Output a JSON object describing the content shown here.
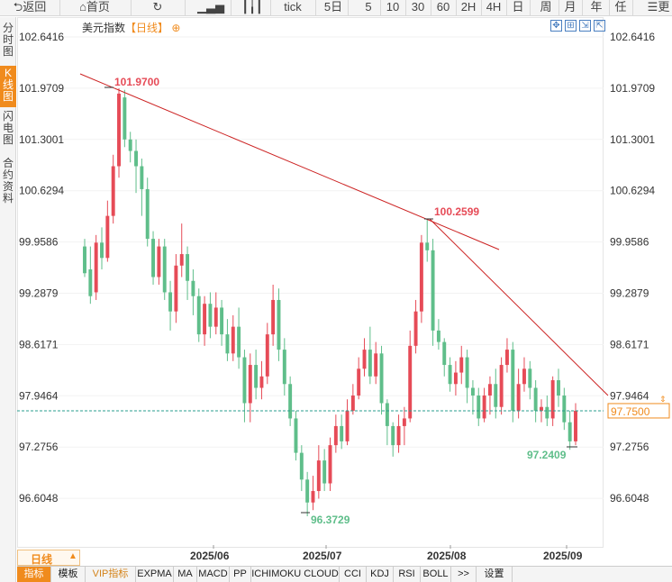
{
  "toolbar": {
    "back": "返回",
    "home": "首页",
    "tick": "tick",
    "periods": [
      "5日",
      "5",
      "10",
      "30",
      "60",
      "2H",
      "4H",
      "日",
      "周",
      "月",
      "年",
      "任"
    ],
    "more": "更"
  },
  "sidetabs": [
    "分时图",
    "K线图",
    "闪电图",
    "合约资料"
  ],
  "title": {
    "name": "美元指数",
    "period": "【日线】"
  },
  "current_price": "97.7500",
  "period_selector": "日线",
  "bottom_tabs": [
    "指标",
    "模板",
    "VIP指标",
    "EXPMA",
    "MA",
    "MACD",
    "PP",
    "ICHIMOKU CLOUD",
    "CCI",
    "KDJ",
    "RSI",
    "BOLL",
    ">>",
    "设置"
  ],
  "colors": {
    "up": "#e64b57",
    "down": "#5fbe8a",
    "trendline": "#cc2222",
    "accent": "#f08b1d",
    "price_line": "#2a9d8f"
  },
  "chart_data": {
    "type": "candlestick",
    "y_ticks": [
      "102.6416",
      "101.9709",
      "101.3001",
      "100.6294",
      "99.9586",
      "99.2879",
      "98.6171",
      "97.9464",
      "97.2756",
      "96.6048"
    ],
    "ylim": [
      96.45,
      102.75
    ],
    "x_labels": [
      "2025/06",
      "2025/07",
      "2025/08",
      "2025/09"
    ],
    "annotations": [
      {
        "text": "101.9700",
        "type": "high"
      },
      {
        "text": "100.2599",
        "type": "high"
      },
      {
        "text": "96.3729",
        "type": "low"
      },
      {
        "text": "97.2409",
        "type": "low"
      }
    ],
    "candles": [
      [
        99.9,
        99.55,
        100.0,
        99.5
      ],
      [
        99.6,
        99.25,
        99.9,
        99.15
      ],
      [
        99.3,
        99.95,
        100.05,
        99.2
      ],
      [
        99.95,
        99.75,
        100.15,
        99.6
      ],
      [
        99.75,
        100.3,
        100.5,
        99.7
      ],
      [
        100.3,
        100.95,
        101.1,
        100.2
      ],
      [
        100.95,
        101.9,
        101.97,
        100.8
      ],
      [
        101.85,
        101.3,
        101.95,
        101.2
      ],
      [
        101.3,
        101.15,
        101.4,
        101.0
      ],
      [
        101.15,
        100.95,
        101.3,
        100.6
      ],
      [
        100.95,
        100.65,
        101.05,
        100.3
      ],
      [
        100.65,
        100.0,
        100.8,
        99.9
      ],
      [
        100.0,
        99.5,
        100.1,
        99.4
      ],
      [
        99.5,
        99.9,
        100.0,
        99.4
      ],
      [
        99.9,
        99.3,
        100.0,
        99.2
      ],
      [
        99.3,
        99.05,
        99.45,
        98.8
      ],
      [
        99.05,
        99.65,
        99.8,
        98.9
      ],
      [
        99.65,
        99.8,
        100.2,
        99.5
      ],
      [
        99.8,
        99.45,
        99.9,
        99.2
      ],
      [
        99.45,
        99.25,
        99.6,
        99.0
      ],
      [
        99.25,
        98.75,
        99.35,
        98.65
      ],
      [
        98.75,
        99.15,
        99.25,
        98.6
      ],
      [
        99.15,
        98.85,
        99.3,
        98.7
      ],
      [
        98.85,
        99.1,
        99.3,
        98.75
      ],
      [
        99.1,
        98.75,
        99.2,
        98.6
      ],
      [
        98.75,
        98.5,
        98.95,
        98.4
      ],
      [
        98.5,
        98.85,
        99.0,
        98.4
      ],
      [
        98.85,
        98.45,
        99.1,
        98.3
      ],
      [
        98.45,
        97.85,
        98.55,
        97.6
      ],
      [
        97.85,
        98.35,
        98.5,
        97.6
      ],
      [
        98.35,
        98.05,
        98.55,
        97.9
      ],
      [
        98.05,
        98.2,
        98.4,
        97.9
      ],
      [
        98.2,
        98.75,
        98.9,
        98.1
      ],
      [
        98.75,
        99.2,
        99.4,
        98.6
      ],
      [
        99.2,
        98.55,
        99.35,
        98.4
      ],
      [
        98.55,
        98.1,
        98.7,
        97.95
      ],
      [
        98.1,
        97.65,
        98.2,
        97.55
      ],
      [
        97.65,
        97.2,
        97.75,
        97.1
      ],
      [
        97.2,
        96.85,
        97.3,
        96.7
      ],
      [
        96.85,
        96.55,
        96.95,
        96.37
      ],
      [
        96.55,
        96.7,
        96.9,
        96.45
      ],
      [
        96.7,
        97.1,
        97.3,
        96.6
      ],
      [
        97.1,
        96.8,
        97.25,
        96.7
      ],
      [
        96.8,
        97.3,
        97.4,
        96.7
      ],
      [
        97.3,
        97.55,
        97.7,
        97.2
      ],
      [
        97.55,
        97.35,
        97.7,
        97.25
      ],
      [
        97.35,
        97.75,
        97.9,
        97.3
      ],
      [
        97.75,
        97.95,
        98.1,
        97.7
      ],
      [
        97.95,
        98.3,
        98.45,
        97.9
      ],
      [
        98.3,
        98.55,
        98.7,
        98.2
      ],
      [
        98.55,
        98.2,
        98.85,
        98.1
      ],
      [
        98.2,
        98.5,
        98.65,
        98.1
      ],
      [
        98.5,
        97.85,
        98.6,
        97.7
      ],
      [
        97.85,
        97.55,
        97.9,
        97.3
      ],
      [
        97.55,
        97.3,
        97.6,
        97.15
      ],
      [
        97.3,
        97.55,
        97.7,
        97.2
      ],
      [
        97.55,
        97.65,
        97.8,
        97.3
      ],
      [
        97.65,
        98.6,
        98.8,
        97.6
      ],
      [
        98.6,
        99.05,
        99.2,
        98.5
      ],
      [
        99.05,
        99.95,
        100.05,
        98.9
      ],
      [
        99.95,
        99.85,
        100.25,
        99.7
      ],
      [
        99.85,
        98.8,
        100.0,
        98.6
      ],
      [
        98.8,
        98.65,
        98.95,
        98.55
      ],
      [
        98.65,
        98.35,
        98.7,
        98.2
      ],
      [
        98.35,
        98.1,
        98.45,
        98.0
      ],
      [
        98.1,
        98.25,
        98.4,
        97.95
      ],
      [
        98.25,
        98.45,
        98.6,
        98.1
      ],
      [
        98.45,
        98.05,
        98.55,
        97.85
      ],
      [
        98.05,
        97.95,
        98.15,
        97.7
      ],
      [
        97.95,
        97.65,
        98.05,
        97.55
      ],
      [
        97.65,
        97.95,
        98.05,
        97.6
      ],
      [
        97.95,
        98.1,
        98.2,
        97.7
      ],
      [
        98.1,
        97.8,
        98.3,
        97.65
      ],
      [
        97.8,
        98.35,
        98.45,
        97.7
      ],
      [
        98.35,
        98.55,
        98.7,
        98.25
      ],
      [
        98.55,
        97.75,
        98.65,
        97.6
      ],
      [
        97.75,
        98.1,
        98.3,
        97.65
      ],
      [
        98.1,
        98.3,
        98.45,
        98.0
      ],
      [
        98.3,
        98.05,
        98.4,
        97.9
      ],
      [
        98.05,
        97.75,
        98.15,
        97.6
      ],
      [
        97.75,
        97.8,
        97.9,
        97.6
      ],
      [
        97.8,
        97.65,
        97.95,
        97.55
      ],
      [
        97.65,
        98.15,
        98.2,
        97.55
      ],
      [
        98.15,
        97.95,
        98.3,
        97.8
      ],
      [
        97.95,
        97.6,
        98.05,
        97.5
      ],
      [
        97.6,
        97.35,
        97.75,
        97.24
      ],
      [
        97.35,
        97.75,
        97.85,
        97.3
      ]
    ]
  }
}
